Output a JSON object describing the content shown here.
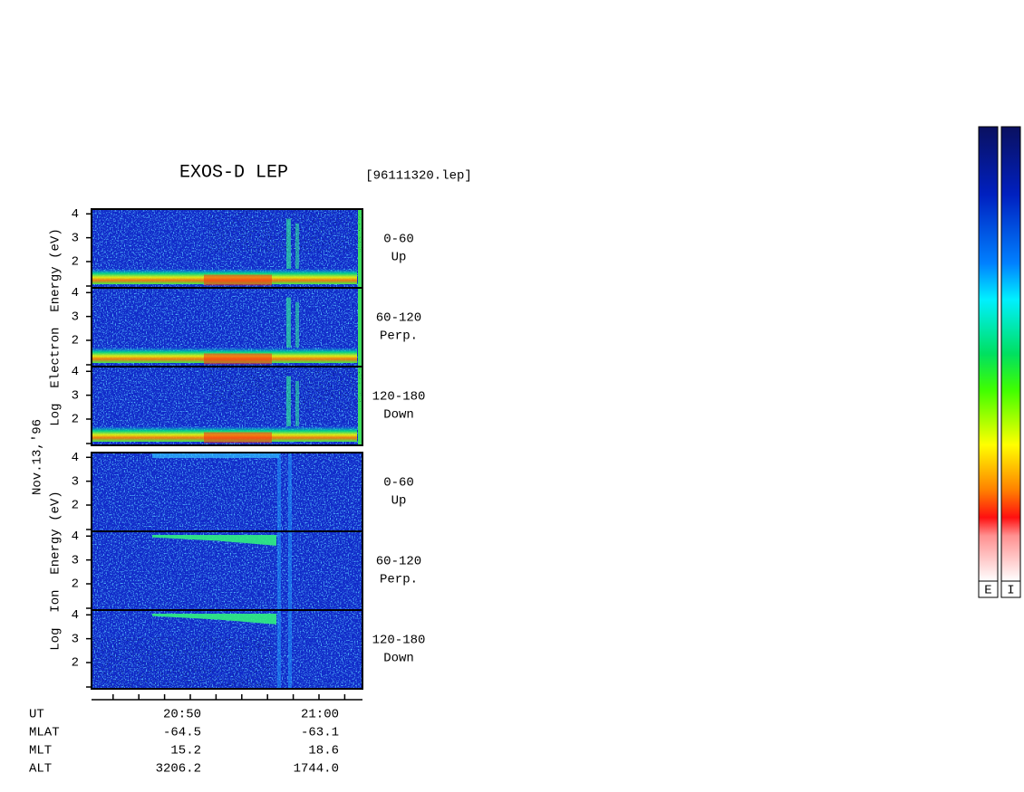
{
  "header": {
    "title": "EXOS-D LEP",
    "file": "[96111320.lep]"
  },
  "date": "Nov.13,'96",
  "groups": [
    {
      "axis_label": "Log  Electron  Energy (eV)",
      "panels": [
        {
          "pitch": "0-60",
          "direction": "Up"
        },
        {
          "pitch": "60-120",
          "direction": "Perp."
        },
        {
          "pitch": "120-180",
          "direction": "Down"
        }
      ]
    },
    {
      "axis_label": "Log  Ion  Energy (eV)",
      "panels": [
        {
          "pitch": "0-60",
          "direction": "Up"
        },
        {
          "pitch": "60-120",
          "direction": "Perp."
        },
        {
          "pitch": "120-180",
          "direction": "Down"
        }
      ]
    }
  ],
  "y_axis": {
    "ylim": [
      0.9,
      4.2
    ],
    "yticks": [
      2,
      3,
      4
    ]
  },
  "ephemeris": {
    "labels": [
      "UT",
      "MLAT",
      "MLT",
      "ALT"
    ],
    "columns": [
      [
        "20:50",
        "-64.5",
        "15.2",
        "3206.2"
      ],
      [
        "21:00",
        "-63.1",
        "18.6",
        "1744.0"
      ]
    ]
  },
  "colorbars": [
    "E",
    "I"
  ]
}
